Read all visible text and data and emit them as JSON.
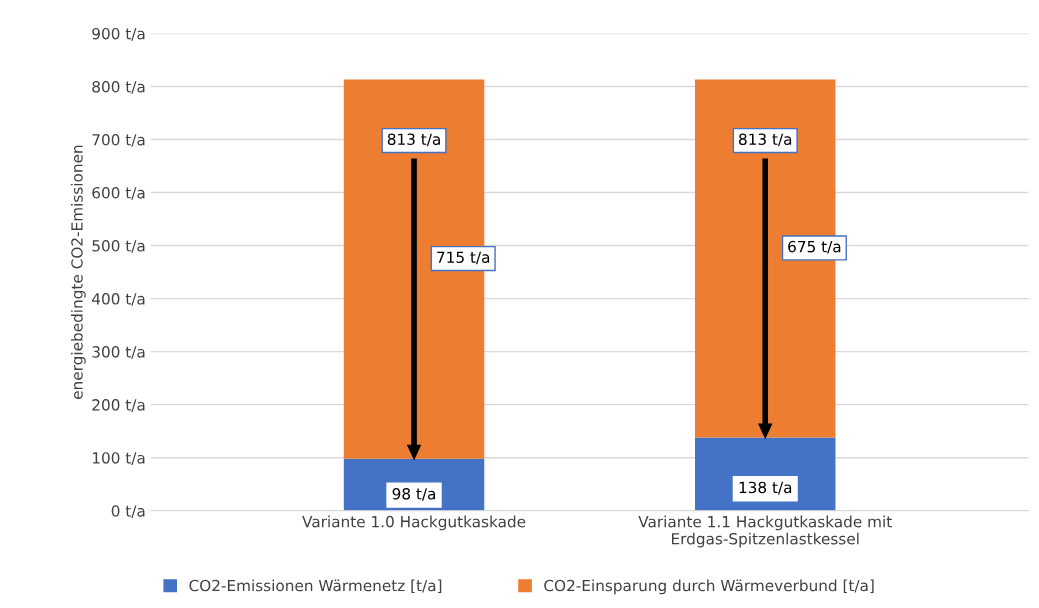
{
  "chart_data": {
    "type": "bar",
    "stacked": true,
    "ylabel": "energiebedingte CO2-Emissionen",
    "categories": [
      "Variante 1.0 Hackgutkaskade",
      "Variante 1.1 Hackgutkaskade mit Erdgas-Spitzenlastkessel"
    ],
    "series": [
      {
        "name": "CO2-Emissionen Wärmenetz [t/a]",
        "color": "#4472c4",
        "values": [
          98,
          138
        ],
        "value_labels": [
          "98 t/a",
          "138 t/a"
        ]
      },
      {
        "name": "CO2-Einsparung durch Wärmeverbund [t/a]",
        "color": "#ed7d31",
        "values": [
          715,
          675
        ],
        "value_labels": [
          "715 t/a",
          "675 t/a"
        ]
      }
    ],
    "totals": [
      "813 t/a",
      "813 t/a"
    ],
    "ylim": [
      0,
      900
    ],
    "yticks": [
      {
        "value": 0,
        "label": "0 t/a"
      },
      {
        "value": 100,
        "label": "100 t/a"
      },
      {
        "value": 200,
        "label": "200 t/a"
      },
      {
        "value": 300,
        "label": "300 t/a"
      },
      {
        "value": 400,
        "label": "400 t/a"
      },
      {
        "value": 500,
        "label": "500 t/a"
      },
      {
        "value": 600,
        "label": "600 t/a"
      },
      {
        "value": 700,
        "label": "700 t/a"
      },
      {
        "value": 800,
        "label": "800 t/a"
      },
      {
        "value": 900,
        "label": "900 t/a"
      }
    ],
    "grid": "y",
    "legend": "bottom"
  }
}
